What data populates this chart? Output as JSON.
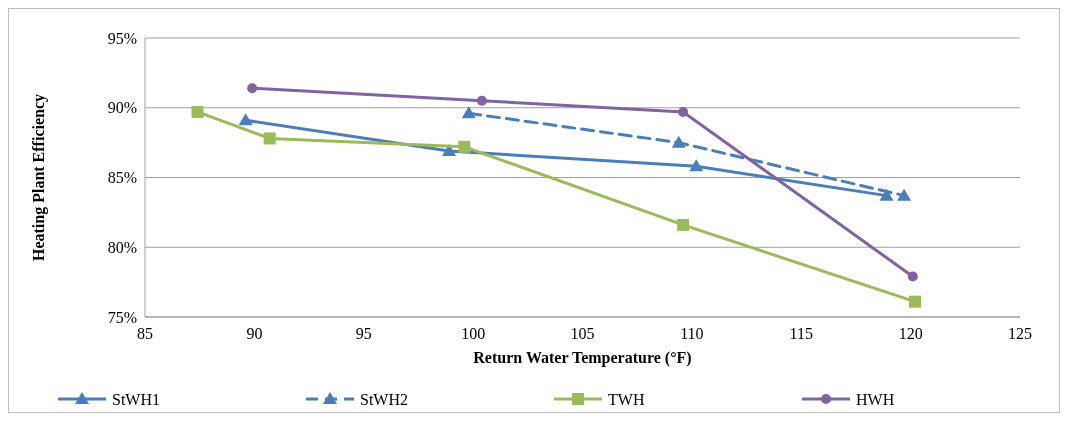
{
  "chart_data": {
    "type": "line",
    "xlabel": "Return Water Temperature (°F)",
    "ylabel": "Heating Plant Efficiency",
    "xlim": [
      85,
      125
    ],
    "xticks": [
      85,
      90,
      95,
      100,
      105,
      110,
      115,
      120,
      125
    ],
    "ylim": [
      75,
      95
    ],
    "yticks": [
      {
        "value": 75,
        "label": "75%"
      },
      {
        "value": 80,
        "label": "80%"
      },
      {
        "value": 85,
        "label": "85%"
      },
      {
        "value": 90,
        "label": "90%"
      },
      {
        "value": 95,
        "label": "95%"
      }
    ],
    "grid": "y",
    "legend": "bottom",
    "series": [
      {
        "name": "StWH1",
        "color": "#4a7ebb",
        "marker": "triangle",
        "line_style": "solid",
        "x": [
          89.6,
          98.9,
          110.2,
          118.9
        ],
        "values": [
          89.1,
          86.9,
          85.8,
          83.7
        ]
      },
      {
        "name": "StWH2",
        "color": "#4a7ebb",
        "marker": "triangle",
        "line_style": "dashed",
        "x": [
          99.8,
          109.4,
          119.7
        ],
        "values": [
          89.6,
          87.5,
          83.7
        ]
      },
      {
        "name": "TWH",
        "color": "#9bbb59",
        "marker": "square",
        "line_style": "solid",
        "x": [
          87.4,
          90.7,
          99.6,
          109.6,
          120.2
        ],
        "values": [
          89.7,
          87.8,
          87.2,
          81.6,
          76.1
        ]
      },
      {
        "name": "HWH",
        "color": "#8064a2",
        "marker": "circle",
        "line_style": "solid",
        "x": [
          89.9,
          100.4,
          109.6,
          120.1
        ],
        "values": [
          91.4,
          90.5,
          89.7,
          77.9
        ]
      }
    ]
  }
}
